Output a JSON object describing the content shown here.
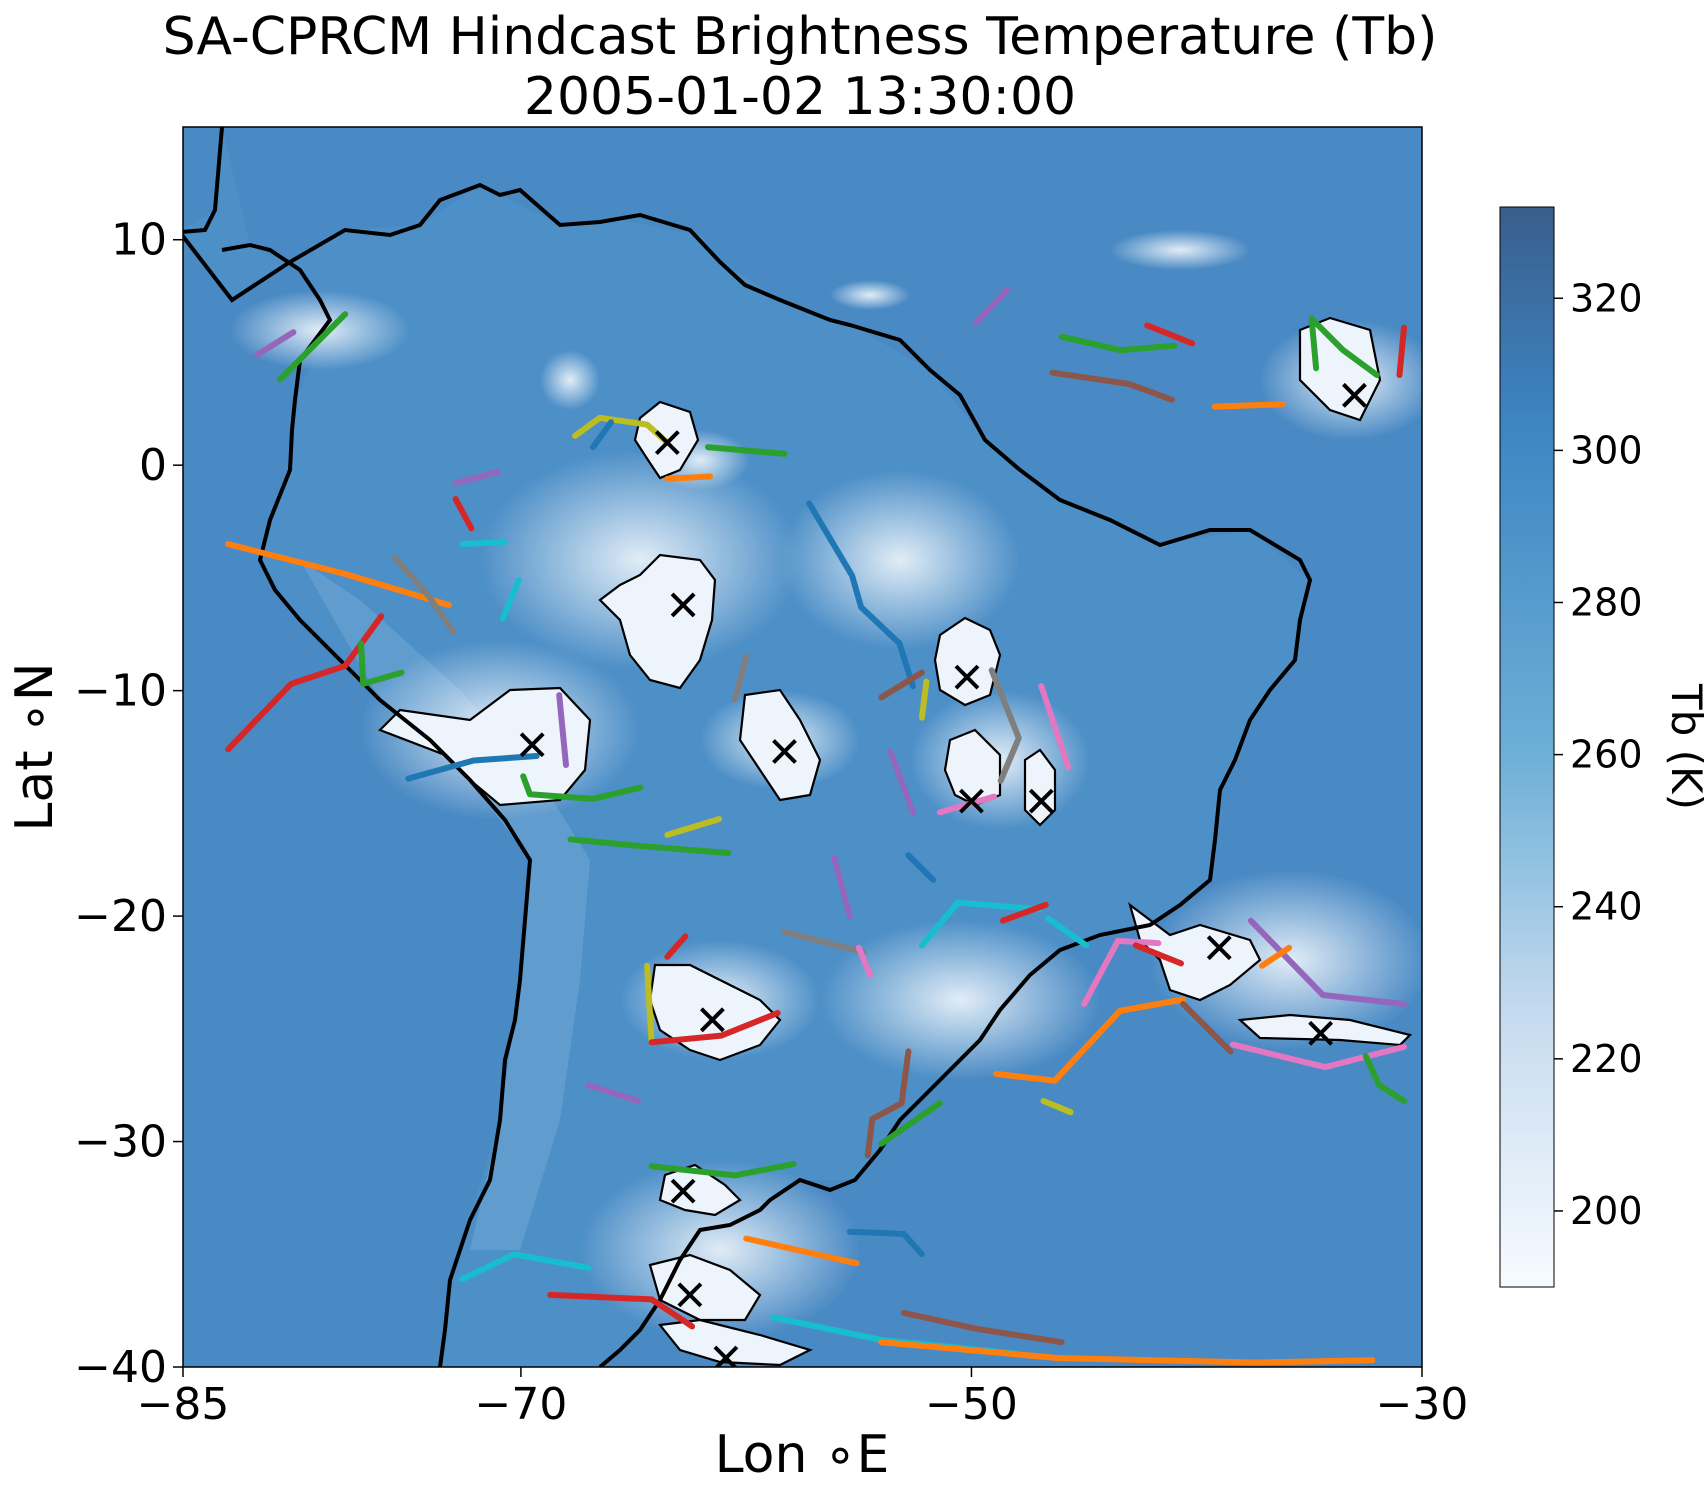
{
  "title": {
    "line1": "SA-CPRCM Hindcast Brightness Temperature (Tb)",
    "line2": "2005-01-02 13:30:00"
  },
  "axes": {
    "xlabel": "Lon ∘E",
    "ylabel": "Lat ∘N",
    "xlim": [
      -85,
      -30
    ],
    "ylim": [
      -40,
      15
    ],
    "xticks": [
      -85,
      -70,
      -50,
      -30
    ],
    "yticks": [
      10,
      0,
      -10,
      -20,
      -30,
      -40
    ],
    "xtick_labels": [
      "−85",
      "−70",
      "−50",
      "−30"
    ],
    "ytick_labels": [
      "10",
      "0",
      "−10",
      "−20",
      "−30",
      "−40"
    ]
  },
  "colorbar": {
    "label": "Tb (K)",
    "range": [
      190,
      332
    ],
    "ticks": [
      320,
      300,
      280,
      260,
      240,
      220,
      200
    ],
    "colormap": "Blues",
    "colors": [
      "#f7fbff",
      "#c6dbef",
      "#6baed6",
      "#3d85c3",
      "#3a5e8c"
    ]
  },
  "colors": {
    "background_ocean": "#4a8ac4",
    "cloud": "#f2f7fc",
    "coastline": "#000000",
    "track_palette": [
      "#1f77b4",
      "#ff7f0e",
      "#2ca02c",
      "#d62728",
      "#9467bd",
      "#8c564b",
      "#e377c2",
      "#7f7f7f",
      "#bcbd22",
      "#17becf"
    ]
  },
  "chart_data": {
    "type": "map",
    "variable": "Brightness Temperature (Tb)",
    "storm_centers": [
      {
        "lon": -63.5,
        "lat": 1.0
      },
      {
        "lon": -62.8,
        "lat": -6.2
      },
      {
        "lon": -69.5,
        "lat": -12.4
      },
      {
        "lon": -58.3,
        "lat": -12.7
      },
      {
        "lon": -50.2,
        "lat": -9.4
      },
      {
        "lon": -50.0,
        "lat": -14.9
      },
      {
        "lon": -46.9,
        "lat": -14.9
      },
      {
        "lon": -33.0,
        "lat": 3.1
      },
      {
        "lon": -39.0,
        "lat": -21.4
      },
      {
        "lon": -34.5,
        "lat": -25.2
      },
      {
        "lon": -61.5,
        "lat": -24.6
      },
      {
        "lon": -62.8,
        "lat": -32.2
      },
      {
        "lon": -62.5,
        "lat": -36.8
      },
      {
        "lon": -60.9,
        "lat": -39.6
      }
    ],
    "tracks": [
      {
        "color": "#2ca02c",
        "points": [
          [
            -80.7,
            3.8
          ],
          [
            -77.8,
            6.7
          ]
        ]
      },
      {
        "color": "#9467bd",
        "points": [
          [
            -81.7,
            4.9
          ],
          [
            -80.1,
            5.9
          ]
        ]
      },
      {
        "color": "#bcbd22",
        "points": [
          [
            -67.6,
            1.3
          ],
          [
            -66.5,
            2.1
          ],
          [
            -64.4,
            1.8
          ],
          [
            -63.5,
            1.0
          ]
        ]
      },
      {
        "color": "#1f77b4",
        "points": [
          [
            -66.8,
            0.8
          ],
          [
            -66.0,
            1.9
          ]
        ]
      },
      {
        "color": "#2ca02c",
        "points": [
          [
            -61.7,
            0.8
          ],
          [
            -58.3,
            0.5
          ]
        ]
      },
      {
        "color": "#ff7f0e",
        "points": [
          [
            -63.5,
            -0.6
          ],
          [
            -61.6,
            -0.5
          ]
        ]
      },
      {
        "color": "#1f77b4",
        "points": [
          [
            -57.2,
            -1.7
          ],
          [
            -55.3,
            -4.9
          ],
          [
            -54.9,
            -6.3
          ],
          [
            -53.2,
            -7.9
          ],
          [
            -52.6,
            -9.8
          ]
        ]
      },
      {
        "color": "#9467bd",
        "points": [
          [
            -49.8,
            6.3
          ],
          [
            -48.4,
            7.8
          ]
        ]
      },
      {
        "color": "#2ca02c",
        "points": [
          [
            -46.0,
            5.7
          ],
          [
            -43.4,
            5.1
          ],
          [
            -41.0,
            5.3
          ]
        ]
      },
      {
        "color": "#d62728",
        "points": [
          [
            -42.2,
            6.2
          ],
          [
            -40.2,
            5.4
          ]
        ]
      },
      {
        "color": "#8c564b",
        "points": [
          [
            -46.4,
            4.1
          ],
          [
            -43.0,
            3.6
          ],
          [
            -41.1,
            2.9
          ]
        ]
      },
      {
        "color": "#ff7f0e",
        "points": [
          [
            -39.2,
            2.6
          ],
          [
            -36.2,
            2.7
          ]
        ]
      },
      {
        "color": "#2ca02c",
        "points": [
          [
            -34.7,
            4.3
          ],
          [
            -34.9,
            6.5
          ],
          [
            -33.5,
            5.1
          ],
          [
            -32.0,
            4.0
          ]
        ]
      },
      {
        "color": "#d62728",
        "points": [
          [
            -30.8,
            6.1
          ],
          [
            -31.0,
            4.0
          ]
        ]
      },
      {
        "color": "#d62728",
        "points": [
          [
            -83.0,
            -12.6
          ],
          [
            -80.2,
            -9.7
          ],
          [
            -77.8,
            -8.9
          ],
          [
            -76.2,
            -6.7
          ]
        ]
      },
      {
        "color": "#ff7f0e",
        "points": [
          [
            -83.0,
            -3.5
          ],
          [
            -77.9,
            -4.8
          ],
          [
            -73.2,
            -6.2
          ]
        ]
      },
      {
        "color": "#2ca02c",
        "points": [
          [
            -77.1,
            -7.9
          ],
          [
            -77.0,
            -9.7
          ],
          [
            -75.3,
            -9.2
          ]
        ]
      },
      {
        "color": "#7f7f7f",
        "points": [
          [
            -75.6,
            -4.1
          ],
          [
            -74.1,
            -5.8
          ],
          [
            -73.0,
            -7.4
          ]
        ]
      },
      {
        "color": "#17becf",
        "points": [
          [
            -72.6,
            -3.5
          ],
          [
            -70.7,
            -3.4
          ]
        ]
      },
      {
        "color": "#d62728",
        "points": [
          [
            -72.9,
            -1.5
          ],
          [
            -72.2,
            -2.8
          ]
        ]
      },
      {
        "color": "#9467bd",
        "points": [
          [
            -72.9,
            -0.8
          ],
          [
            -71.0,
            -0.3
          ]
        ]
      },
      {
        "color": "#17becf",
        "points": [
          [
            -70.8,
            -6.8
          ],
          [
            -70.1,
            -5.1
          ]
        ]
      },
      {
        "color": "#1f77b4",
        "points": [
          [
            -75.0,
            -13.9
          ],
          [
            -72.1,
            -13.1
          ],
          [
            -69.3,
            -12.9
          ]
        ]
      },
      {
        "color": "#2ca02c",
        "points": [
          [
            -69.9,
            -13.8
          ],
          [
            -69.6,
            -14.6
          ],
          [
            -66.8,
            -14.8
          ],
          [
            -64.7,
            -14.3
          ]
        ]
      },
      {
        "color": "#9467bd",
        "points": [
          [
            -68.0,
            -13.3
          ],
          [
            -68.3,
            -10.2
          ]
        ]
      },
      {
        "color": "#2ca02c",
        "points": [
          [
            -67.8,
            -16.6
          ],
          [
            -64.6,
            -16.9
          ],
          [
            -60.8,
            -17.2
          ]
        ]
      },
      {
        "color": "#bcbd22",
        "points": [
          [
            -63.5,
            -16.4
          ],
          [
            -61.2,
            -15.7
          ]
        ]
      },
      {
        "color": "#7f7f7f",
        "points": [
          [
            -60.0,
            -8.5
          ],
          [
            -60.5,
            -10.4
          ]
        ]
      },
      {
        "color": "#8c564b",
        "points": [
          [
            -54.0,
            -10.3
          ],
          [
            -52.2,
            -9.2
          ]
        ]
      },
      {
        "color": "#bcbd22",
        "points": [
          [
            -52.0,
            -9.6
          ],
          [
            -52.2,
            -11.2
          ]
        ]
      },
      {
        "color": "#7f7f7f",
        "points": [
          [
            -49.1,
            -9.1
          ],
          [
            -47.9,
            -12.1
          ],
          [
            -48.7,
            -14.0
          ]
        ]
      },
      {
        "color": "#e377c2",
        "points": [
          [
            -46.9,
            -9.8
          ],
          [
            -45.7,
            -13.4
          ]
        ]
      },
      {
        "color": "#e377c2",
        "points": [
          [
            -51.4,
            -15.4
          ],
          [
            -49.0,
            -14.7
          ]
        ]
      },
      {
        "color": "#9467bd",
        "points": [
          [
            -53.6,
            -12.7
          ],
          [
            -52.6,
            -15.4
          ]
        ]
      },
      {
        "color": "#1f77b4",
        "points": [
          [
            -52.8,
            -17.3
          ],
          [
            -51.7,
            -18.4
          ]
        ]
      },
      {
        "color": "#9467bd",
        "points": [
          [
            -56.1,
            -17.4
          ],
          [
            -55.4,
            -20.0
          ]
        ]
      },
      {
        "color": "#7f7f7f",
        "points": [
          [
            -58.3,
            -20.7
          ],
          [
            -54.8,
            -21.6
          ]
        ]
      },
      {
        "color": "#e377c2",
        "points": [
          [
            -55.0,
            -21.4
          ],
          [
            -54.5,
            -22.6
          ]
        ]
      },
      {
        "color": "#17becf",
        "points": [
          [
            -52.2,
            -21.3
          ],
          [
            -50.6,
            -19.4
          ],
          [
            -47.0,
            -19.7
          ]
        ]
      },
      {
        "color": "#d62728",
        "points": [
          [
            -46.7,
            -19.5
          ],
          [
            -48.6,
            -20.2
          ]
        ]
      },
      {
        "color": "#17becf",
        "points": [
          [
            -46.6,
            -20.1
          ],
          [
            -44.9,
            -21.3
          ]
        ]
      },
      {
        "color": "#e377c2",
        "points": [
          [
            -45.0,
            -23.9
          ],
          [
            -43.5,
            -21.1
          ],
          [
            -41.7,
            -21.2
          ]
        ]
      },
      {
        "color": "#d62728",
        "points": [
          [
            -42.7,
            -21.3
          ],
          [
            -40.7,
            -22.1
          ]
        ]
      },
      {
        "color": "#ff7f0e",
        "points": [
          [
            -48.9,
            -27.0
          ],
          [
            -46.3,
            -27.3
          ],
          [
            -43.4,
            -24.2
          ],
          [
            -40.6,
            -23.7
          ]
        ]
      },
      {
        "color": "#8c564b",
        "points": [
          [
            -40.6,
            -23.9
          ],
          [
            -38.5,
            -26.0
          ]
        ]
      },
      {
        "color": "#e377c2",
        "points": [
          [
            -38.4,
            -25.7
          ],
          [
            -34.3,
            -26.7
          ],
          [
            -30.8,
            -25.8
          ]
        ]
      },
      {
        "color": "#9467bd",
        "points": [
          [
            -37.6,
            -20.2
          ],
          [
            -34.4,
            -23.5
          ],
          [
            -30.8,
            -23.9
          ]
        ]
      },
      {
        "color": "#2ca02c",
        "points": [
          [
            -32.5,
            -26.2
          ],
          [
            -31.9,
            -27.5
          ],
          [
            -30.8,
            -28.2
          ]
        ]
      },
      {
        "color": "#ff7f0e",
        "points": [
          [
            -37.1,
            -22.2
          ],
          [
            -35.9,
            -21.4
          ]
        ]
      },
      {
        "color": "#d62728",
        "points": [
          [
            -62.7,
            -20.9
          ],
          [
            -63.5,
            -21.8
          ]
        ]
      },
      {
        "color": "#bcbd22",
        "points": [
          [
            -64.4,
            -22.2
          ],
          [
            -64.2,
            -25.6
          ]
        ]
      },
      {
        "color": "#d62728",
        "points": [
          [
            -64.2,
            -25.6
          ],
          [
            -61.1,
            -25.3
          ],
          [
            -58.6,
            -24.3
          ]
        ]
      },
      {
        "color": "#9467bd",
        "points": [
          [
            -67.0,
            -27.5
          ],
          [
            -64.8,
            -28.2
          ]
        ]
      },
      {
        "color": "#8c564b",
        "points": [
          [
            -52.8,
            -26.0
          ],
          [
            -53.1,
            -28.3
          ],
          [
            -54.4,
            -29.0
          ],
          [
            -54.6,
            -30.6
          ]
        ]
      },
      {
        "color": "#2ca02c",
        "points": [
          [
            -54.0,
            -30.1
          ],
          [
            -51.4,
            -28.3
          ]
        ]
      },
      {
        "color": "#bcbd22",
        "points": [
          [
            -46.8,
            -28.2
          ],
          [
            -45.6,
            -28.7
          ]
        ]
      },
      {
        "color": "#2ca02c",
        "points": [
          [
            -64.2,
            -31.1
          ],
          [
            -60.5,
            -31.5
          ],
          [
            -57.9,
            -31.0
          ]
        ]
      },
      {
        "color": "#17becf",
        "points": [
          [
            -72.6,
            -36.1
          ],
          [
            -70.3,
            -35.0
          ],
          [
            -67.0,
            -35.6
          ]
        ]
      },
      {
        "color": "#1f77b4",
        "points": [
          [
            -55.4,
            -34.0
          ],
          [
            -53.0,
            -34.1
          ],
          [
            -52.2,
            -35.0
          ]
        ]
      },
      {
        "color": "#ff7f0e",
        "points": [
          [
            -60.0,
            -34.3
          ],
          [
            -55.1,
            -35.4
          ]
        ]
      },
      {
        "color": "#d62728",
        "points": [
          [
            -68.7,
            -36.8
          ],
          [
            -64.2,
            -37.0
          ],
          [
            -62.4,
            -38.2
          ]
        ]
      },
      {
        "color": "#17becf",
        "points": [
          [
            -58.8,
            -37.8
          ],
          [
            -54.0,
            -38.8
          ],
          [
            -48.1,
            -39.4
          ]
        ]
      },
      {
        "color": "#ff7f0e",
        "points": [
          [
            -54.0,
            -38.9
          ],
          [
            -46.2,
            -39.6
          ],
          [
            -37.4,
            -39.8
          ],
          [
            -32.2,
            -39.7
          ]
        ]
      },
      {
        "color": "#8c564b",
        "points": [
          [
            -53.0,
            -37.6
          ],
          [
            -49.8,
            -38.3
          ],
          [
            -46.0,
            -38.9
          ]
        ]
      }
    ]
  },
  "notes": {
    "coastline": "South America continental outline",
    "cloud_contours": "black outlines around cold cloud shields"
  }
}
